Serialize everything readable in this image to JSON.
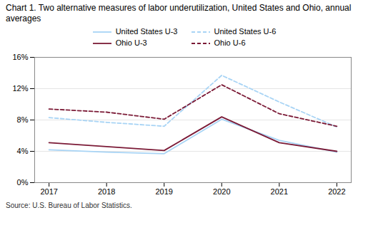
{
  "chart_data": {
    "type": "line",
    "title": "Chart 1. Two alternative measures of labor underutilization, United States and Ohio, annual averages",
    "source": "Source: U.S. Bureau of Labor Statistics.",
    "x": [
      2017,
      2018,
      2019,
      2020,
      2021,
      2022
    ],
    "series": [
      {
        "name": "United States U-3",
        "color": "#a8d4f5",
        "line_style": "solid",
        "values": [
          4.2,
          3.9,
          3.7,
          8.1,
          5.4,
          3.9
        ]
      },
      {
        "name": "United States U-6",
        "color": "#a8d4f5",
        "line_style": "dashed",
        "values": [
          8.3,
          7.7,
          7.2,
          13.7,
          10.3,
          7.1
        ]
      },
      {
        "name": "Ohio U-3",
        "color": "#7b1a36",
        "line_style": "solid",
        "values": [
          5.1,
          4.6,
          4.1,
          8.4,
          5.1,
          4.0
        ]
      },
      {
        "name": "Ohio U-6",
        "color": "#7b1a36",
        "line_style": "dashed",
        "values": [
          9.4,
          9.0,
          8.1,
          12.5,
          8.8,
          7.2
        ]
      }
    ],
    "xlim": [
      2016.75,
      2022.25
    ],
    "xticks": [
      2017,
      2018,
      2019,
      2020,
      2021,
      2022
    ],
    "ylim": [
      0,
      16
    ],
    "yticks": [
      {
        "value": 0,
        "label": "0%"
      },
      {
        "value": 4,
        "label": "4%"
      },
      {
        "value": 8,
        "label": "8%"
      },
      {
        "value": 12,
        "label": "12%"
      },
      {
        "value": 16,
        "label": "16%"
      }
    ],
    "grid": true,
    "legend": "top"
  }
}
